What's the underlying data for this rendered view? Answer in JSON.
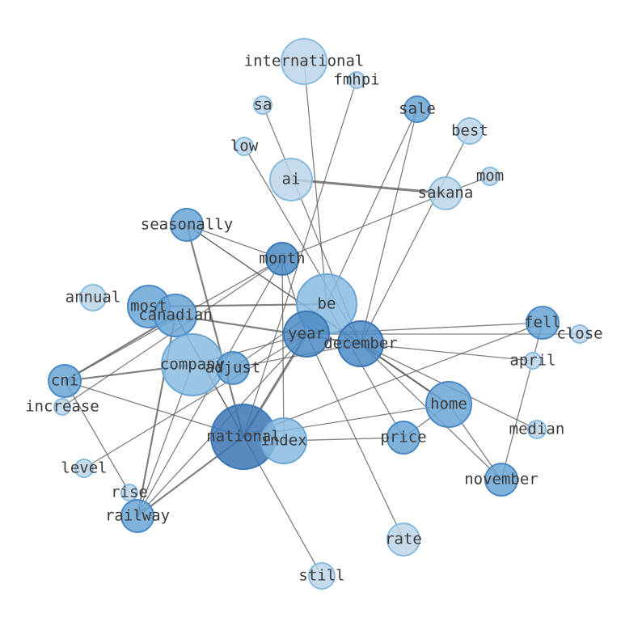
{
  "nodes": [
    {
      "label": "international"
    },
    {
      "label": "fmhpi"
    },
    {
      "label": "sa"
    },
    {
      "label": "sale"
    },
    {
      "label": "best"
    },
    {
      "label": "low"
    },
    {
      "label": "ai"
    },
    {
      "label": "mom"
    },
    {
      "label": "sakana"
    },
    {
      "label": "seasonally"
    },
    {
      "label": "month"
    },
    {
      "label": "annual"
    },
    {
      "label": "be"
    },
    {
      "label": "most"
    },
    {
      "label": "canadian"
    },
    {
      "label": "year"
    },
    {
      "label": "december"
    },
    {
      "label": "fell"
    },
    {
      "label": "close"
    },
    {
      "label": "company"
    },
    {
      "label": "adjust"
    },
    {
      "label": "april"
    },
    {
      "label": "cni"
    },
    {
      "label": "increase"
    },
    {
      "label": "home"
    },
    {
      "label": "national"
    },
    {
      "label": "index"
    },
    {
      "label": "price"
    },
    {
      "label": "median"
    },
    {
      "label": "level"
    },
    {
      "label": "november"
    },
    {
      "label": "rise"
    },
    {
      "label": "railway"
    },
    {
      "label": "rate"
    },
    {
      "label": "still"
    }
  ]
}
